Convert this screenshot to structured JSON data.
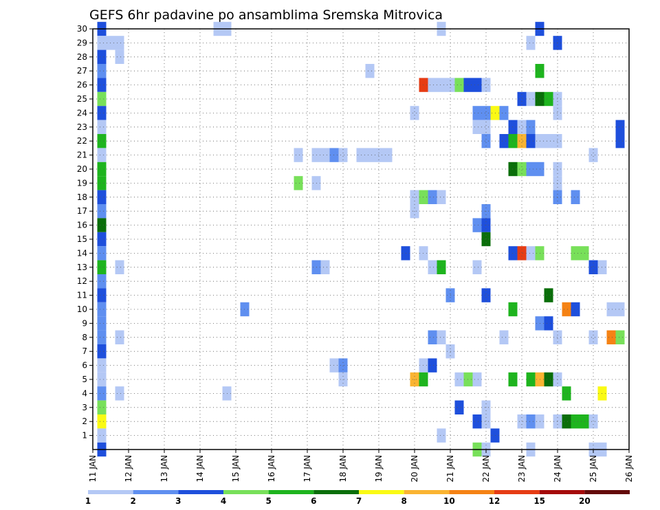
{
  "title": "GEFS 6hr padavine po ansamblima Sremska Mitrovica",
  "chart_data": {
    "type": "heatmap",
    "title": "GEFS 6hr padavine po ansamblima Sremska Mitrovica",
    "x_tick_labels": [
      "11 JAN",
      "12 JAN",
      "13 JAN",
      "14 JAN",
      "15 JAN",
      "16 JAN",
      "17 JAN",
      "18 JAN",
      "19 JAN",
      "20 JAN",
      "21 JAN",
      "22 JAN",
      "23 JAN",
      "24 JAN",
      "25 JAN",
      "26 JAN"
    ],
    "y_tick_labels": [
      "1",
      "2",
      "3",
      "4",
      "5",
      "6",
      "7",
      "8",
      "9",
      "10",
      "11",
      "12",
      "13",
      "14",
      "15",
      "16",
      "17",
      "18",
      "19",
      "20",
      "21",
      "22",
      "23",
      "24",
      "25",
      "26",
      "27",
      "28",
      "29",
      "30"
    ],
    "x_range": [
      "11 JAN 00Z",
      "26 JAN 00Z"
    ],
    "y_range": [
      0,
      30
    ],
    "step_hours": 6,
    "grid": true,
    "legend_placement": "bottom",
    "legend": {
      "labels": [
        "1",
        "2",
        "3",
        "4",
        "5",
        "6",
        "7",
        "8",
        "10",
        "12",
        "15",
        "20"
      ],
      "colors": [
        "#b4c8f5",
        "#5f8ff0",
        "#1e4fdc",
        "#78e05a",
        "#1eb41e",
        "#0a6e0a",
        "#fafa14",
        "#fab432",
        "#f58214",
        "#e63c14",
        "#a50a0a",
        "#640a0a"
      ]
    },
    "cells": [
      [
        "11 JAN 06Z",
        30,
        "#1e4fdc"
      ],
      [
        "11 JAN 06Z",
        29,
        "#b4c8f5"
      ],
      [
        "11 JAN 12Z",
        29,
        "#b4c8f5"
      ],
      [
        "11 JAN 18Z",
        29,
        "#b4c8f5"
      ],
      [
        "11 JAN 06Z",
        28,
        "#1e4fdc"
      ],
      [
        "11 JAN 18Z",
        28,
        "#b4c8f5"
      ],
      [
        "11 JAN 06Z",
        27,
        "#5f8ff0"
      ],
      [
        "11 JAN 06Z",
        26,
        "#1e4fdc"
      ],
      [
        "11 JAN 06Z",
        25,
        "#78e05a"
      ],
      [
        "11 JAN 06Z",
        24,
        "#1e4fdc"
      ],
      [
        "11 JAN 06Z",
        23,
        "#b4c8f5"
      ],
      [
        "11 JAN 06Z",
        22,
        "#1eb41e"
      ],
      [
        "11 JAN 06Z",
        21,
        "#b4c8f5"
      ],
      [
        "11 JAN 06Z",
        20,
        "#1eb41e"
      ],
      [
        "11 JAN 06Z",
        19,
        "#1eb41e"
      ],
      [
        "11 JAN 06Z",
        18,
        "#1e4fdc"
      ],
      [
        "11 JAN 06Z",
        17,
        "#5f8ff0"
      ],
      [
        "11 JAN 06Z",
        16,
        "#0a6e0a"
      ],
      [
        "11 JAN 06Z",
        15,
        "#1e4fdc"
      ],
      [
        "11 JAN 06Z",
        14,
        "#5f8ff0"
      ],
      [
        "11 JAN 06Z",
        13,
        "#1eb41e"
      ],
      [
        "11 JAN 06Z",
        12,
        "#5f8ff0"
      ],
      [
        "11 JAN 06Z",
        11,
        "#1e4fdc"
      ],
      [
        "11 JAN 06Z",
        10,
        "#5f8ff0"
      ],
      [
        "11 JAN 06Z",
        9,
        "#5f8ff0"
      ],
      [
        "11 JAN 06Z",
        8,
        "#5f8ff0"
      ],
      [
        "11 JAN 06Z",
        7,
        "#1e4fdc"
      ],
      [
        "11 JAN 06Z",
        6,
        "#b4c8f5"
      ],
      [
        "11 JAN 06Z",
        5,
        "#b4c8f5"
      ],
      [
        "11 JAN 06Z",
        4,
        "#5f8ff0"
      ],
      [
        "11 JAN 06Z",
        3,
        "#78e05a"
      ],
      [
        "11 JAN 06Z",
        2,
        "#fafa14"
      ],
      [
        "11 JAN 06Z",
        1,
        "#b4c8f5"
      ],
      [
        "11 JAN 06Z",
        0,
        "#1e4fdc"
      ],
      [
        "11 JAN 18Z",
        13,
        "#b4c8f5"
      ],
      [
        "11 JAN 18Z",
        8,
        "#b4c8f5"
      ],
      [
        "11 JAN 18Z",
        4,
        "#b4c8f5"
      ],
      [
        "14 JAN 12Z",
        30,
        "#b4c8f5"
      ],
      [
        "14 JAN 18Z",
        30,
        "#b4c8f5"
      ],
      [
        "14 JAN 18Z",
        4,
        "#b4c8f5"
      ],
      [
        "15 JAN 06Z",
        10,
        "#5f8ff0"
      ],
      [
        "16 JAN 18Z",
        21,
        "#b4c8f5"
      ],
      [
        "16 JAN 18Z",
        19,
        "#78e05a"
      ],
      [
        "17 JAN 06Z",
        19,
        "#b4c8f5"
      ],
      [
        "17 JAN 06Z",
        21,
        "#b4c8f5"
      ],
      [
        "17 JAN 12Z",
        21,
        "#b4c8f5"
      ],
      [
        "17 JAN 18Z",
        21,
        "#5f8ff0"
      ],
      [
        "18 JAN 00Z",
        21,
        "#b4c8f5"
      ],
      [
        "18 JAN 12Z",
        21,
        "#b4c8f5"
      ],
      [
        "18 JAN 18Z",
        21,
        "#b4c8f5"
      ],
      [
        "19 JAN 00Z",
        21,
        "#b4c8f5"
      ],
      [
        "19 JAN 06Z",
        21,
        "#b4c8f5"
      ],
      [
        "17 JAN 06Z",
        13,
        "#5f8ff0"
      ],
      [
        "17 JAN 12Z",
        13,
        "#b4c8f5"
      ],
      [
        "17 JAN 18Z",
        6,
        "#b4c8f5"
      ],
      [
        "18 JAN 00Z",
        6,
        "#5f8ff0"
      ],
      [
        "18 JAN 00Z",
        5,
        "#b4c8f5"
      ],
      [
        "18 JAN 18Z",
        27,
        "#b4c8f5"
      ],
      [
        "19 JAN 18Z",
        14,
        "#1e4fdc"
      ],
      [
        "20 JAN 00Z",
        24,
        "#b4c8f5"
      ],
      [
        "20 JAN 00Z",
        18,
        "#b4c8f5"
      ],
      [
        "20 JAN 00Z",
        17,
        "#b4c8f5"
      ],
      [
        "20 JAN 00Z",
        5,
        "#fab432"
      ],
      [
        "20 JAN 06Z",
        26,
        "#e63c14"
      ],
      [
        "20 JAN 06Z",
        18,
        "#78e05a"
      ],
      [
        "20 JAN 06Z",
        14,
        "#b4c8f5"
      ],
      [
        "20 JAN 06Z",
        6,
        "#b4c8f5"
      ],
      [
        "20 JAN 06Z",
        5,
        "#1eb41e"
      ],
      [
        "20 JAN 12Z",
        26,
        "#b4c8f5"
      ],
      [
        "20 JAN 12Z",
        18,
        "#5f8ff0"
      ],
      [
        "20 JAN 12Z",
        13,
        "#b4c8f5"
      ],
      [
        "20 JAN 12Z",
        8,
        "#5f8ff0"
      ],
      [
        "20 JAN 12Z",
        6,
        "#1e4fdc"
      ],
      [
        "20 JAN 18Z",
        30,
        "#b4c8f5"
      ],
      [
        "20 JAN 18Z",
        26,
        "#b4c8f5"
      ],
      [
        "20 JAN 18Z",
        18,
        "#b4c8f5"
      ],
      [
        "20 JAN 18Z",
        13,
        "#1eb41e"
      ],
      [
        "20 JAN 18Z",
        8,
        "#b4c8f5"
      ],
      [
        "20 JAN 18Z",
        1,
        "#b4c8f5"
      ],
      [
        "21 JAN 00Z",
        26,
        "#b4c8f5"
      ],
      [
        "21 JAN 00Z",
        11,
        "#5f8ff0"
      ],
      [
        "21 JAN 00Z",
        7,
        "#b4c8f5"
      ],
      [
        "21 JAN 06Z",
        26,
        "#78e05a"
      ],
      [
        "21 JAN 06Z",
        5,
        "#b4c8f5"
      ],
      [
        "21 JAN 06Z",
        3,
        "#1e4fdc"
      ],
      [
        "21 JAN 12Z",
        26,
        "#1e4fdc"
      ],
      [
        "21 JAN 12Z",
        5,
        "#78e05a"
      ],
      [
        "21 JAN 18Z",
        26,
        "#1e4fdc"
      ],
      [
        "21 JAN 18Z",
        24,
        "#5f8ff0"
      ],
      [
        "21 JAN 18Z",
        23,
        "#b4c8f5"
      ],
      [
        "21 JAN 18Z",
        16,
        "#5f8ff0"
      ],
      [
        "21 JAN 18Z",
        13,
        "#b4c8f5"
      ],
      [
        "21 JAN 18Z",
        5,
        "#b4c8f5"
      ],
      [
        "21 JAN 18Z",
        2,
        "#1e4fdc"
      ],
      [
        "21 JAN 18Z",
        0,
        "#78e05a"
      ],
      [
        "22 JAN 00Z",
        26,
        "#b4c8f5"
      ],
      [
        "22 JAN 00Z",
        24,
        "#5f8ff0"
      ],
      [
        "22 JAN 00Z",
        23,
        "#b4c8f5"
      ],
      [
        "22 JAN 00Z",
        22,
        "#5f8ff0"
      ],
      [
        "22 JAN 00Z",
        17,
        "#5f8ff0"
      ],
      [
        "22 JAN 00Z",
        16,
        "#1e4fdc"
      ],
      [
        "22 JAN 00Z",
        15,
        "#0a6e0a"
      ],
      [
        "22 JAN 00Z",
        11,
        "#1e4fdc"
      ],
      [
        "22 JAN 00Z",
        3,
        "#b4c8f5"
      ],
      [
        "22 JAN 00Z",
        2,
        "#b4c8f5"
      ],
      [
        "22 JAN 00Z",
        0,
        "#b4c8f5"
      ],
      [
        "22 JAN 06Z",
        24,
        "#fafa14"
      ],
      [
        "22 JAN 06Z",
        1,
        "#1e4fdc"
      ],
      [
        "22 JAN 12Z",
        24,
        "#5f8ff0"
      ],
      [
        "22 JAN 12Z",
        22,
        "#1e4fdc"
      ],
      [
        "22 JAN 12Z",
        8,
        "#b4c8f5"
      ],
      [
        "22 JAN 18Z",
        23,
        "#1e4fdc"
      ],
      [
        "22 JAN 18Z",
        22,
        "#1eb41e"
      ],
      [
        "22 JAN 18Z",
        20,
        "#0a6e0a"
      ],
      [
        "22 JAN 18Z",
        14,
        "#1e4fdc"
      ],
      [
        "22 JAN 18Z",
        10,
        "#1eb41e"
      ],
      [
        "22 JAN 18Z",
        5,
        "#1eb41e"
      ],
      [
        "23 JAN 00Z",
        25,
        "#1e4fdc"
      ],
      [
        "23 JAN 00Z",
        23,
        "#b4c8f5"
      ],
      [
        "23 JAN 00Z",
        22,
        "#fab432"
      ],
      [
        "23 JAN 00Z",
        20,
        "#78e05a"
      ],
      [
        "23 JAN 00Z",
        14,
        "#e63c14"
      ],
      [
        "23 JAN 00Z",
        2,
        "#b4c8f5"
      ],
      [
        "23 JAN 06Z",
        29,
        "#b4c8f5"
      ],
      [
        "23 JAN 06Z",
        25,
        "#b4c8f5"
      ],
      [
        "23 JAN 06Z",
        23,
        "#5f8ff0"
      ],
      [
        "23 JAN 06Z",
        22,
        "#1e4fdc"
      ],
      [
        "23 JAN 06Z",
        20,
        "#5f8ff0"
      ],
      [
        "23 JAN 06Z",
        14,
        "#b4c8f5"
      ],
      [
        "23 JAN 06Z",
        5,
        "#1eb41e"
      ],
      [
        "23 JAN 06Z",
        2,
        "#5f8ff0"
      ],
      [
        "23 JAN 06Z",
        0,
        "#b4c8f5"
      ],
      [
        "23 JAN 12Z",
        30,
        "#1e4fdc"
      ],
      [
        "23 JAN 12Z",
        27,
        "#1eb41e"
      ],
      [
        "23 JAN 12Z",
        25,
        "#0a6e0a"
      ],
      [
        "23 JAN 12Z",
        22,
        "#b4c8f5"
      ],
      [
        "23 JAN 12Z",
        20,
        "#5f8ff0"
      ],
      [
        "23 JAN 12Z",
        14,
        "#78e05a"
      ],
      [
        "23 JAN 12Z",
        9,
        "#5f8ff0"
      ],
      [
        "23 JAN 12Z",
        5,
        "#fab432"
      ],
      [
        "23 JAN 12Z",
        2,
        "#b4c8f5"
      ],
      [
        "23 JAN 18Z",
        25,
        "#1eb41e"
      ],
      [
        "23 JAN 18Z",
        22,
        "#b4c8f5"
      ],
      [
        "23 JAN 18Z",
        11,
        "#0a6e0a"
      ],
      [
        "23 JAN 18Z",
        9,
        "#1e4fdc"
      ],
      [
        "23 JAN 18Z",
        5,
        "#0a6e0a"
      ],
      [
        "24 JAN 00Z",
        29,
        "#1e4fdc"
      ],
      [
        "24 JAN 00Z",
        25,
        "#b4c8f5"
      ],
      [
        "24 JAN 00Z",
        24,
        "#b4c8f5"
      ],
      [
        "24 JAN 00Z",
        22,
        "#b4c8f5"
      ],
      [
        "24 JAN 00Z",
        20,
        "#b4c8f5"
      ],
      [
        "24 JAN 00Z",
        19,
        "#b4c8f5"
      ],
      [
        "24 JAN 00Z",
        18,
        "#5f8ff0"
      ],
      [
        "24 JAN 00Z",
        8,
        "#b4c8f5"
      ],
      [
        "24 JAN 00Z",
        5,
        "#b4c8f5"
      ],
      [
        "24 JAN 00Z",
        2,
        "#b4c8f5"
      ],
      [
        "24 JAN 06Z",
        10,
        "#f58214"
      ],
      [
        "24 JAN 06Z",
        4,
        "#1eb41e"
      ],
      [
        "24 JAN 06Z",
        2,
        "#0a6e0a"
      ],
      [
        "24 JAN 12Z",
        18,
        "#5f8ff0"
      ],
      [
        "24 JAN 12Z",
        14,
        "#78e05a"
      ],
      [
        "24 JAN 12Z",
        10,
        "#1e4fdc"
      ],
      [
        "24 JAN 12Z",
        2,
        "#1eb41e"
      ],
      [
        "24 JAN 18Z",
        14,
        "#78e05a"
      ],
      [
        "24 JAN 18Z",
        2,
        "#1eb41e"
      ],
      [
        "25 JAN 00Z",
        21,
        "#b4c8f5"
      ],
      [
        "25 JAN 00Z",
        13,
        "#1e4fdc"
      ],
      [
        "25 JAN 00Z",
        8,
        "#b4c8f5"
      ],
      [
        "25 JAN 00Z",
        2,
        "#b4c8f5"
      ],
      [
        "25 JAN 00Z",
        0,
        "#b4c8f5"
      ],
      [
        "25 JAN 06Z",
        13,
        "#b4c8f5"
      ],
      [
        "25 JAN 06Z",
        4,
        "#fafa14"
      ],
      [
        "25 JAN 06Z",
        0,
        "#b4c8f5"
      ],
      [
        "25 JAN 12Z",
        10,
        "#b4c8f5"
      ],
      [
        "25 JAN 12Z",
        8,
        "#f58214"
      ],
      [
        "25 JAN 18Z",
        23,
        "#1e4fdc"
      ],
      [
        "25 JAN 18Z",
        22,
        "#1e4fdc"
      ],
      [
        "25 JAN 18Z",
        10,
        "#b4c8f5"
      ],
      [
        "25 JAN 18Z",
        8,
        "#78e05a"
      ]
    ]
  }
}
